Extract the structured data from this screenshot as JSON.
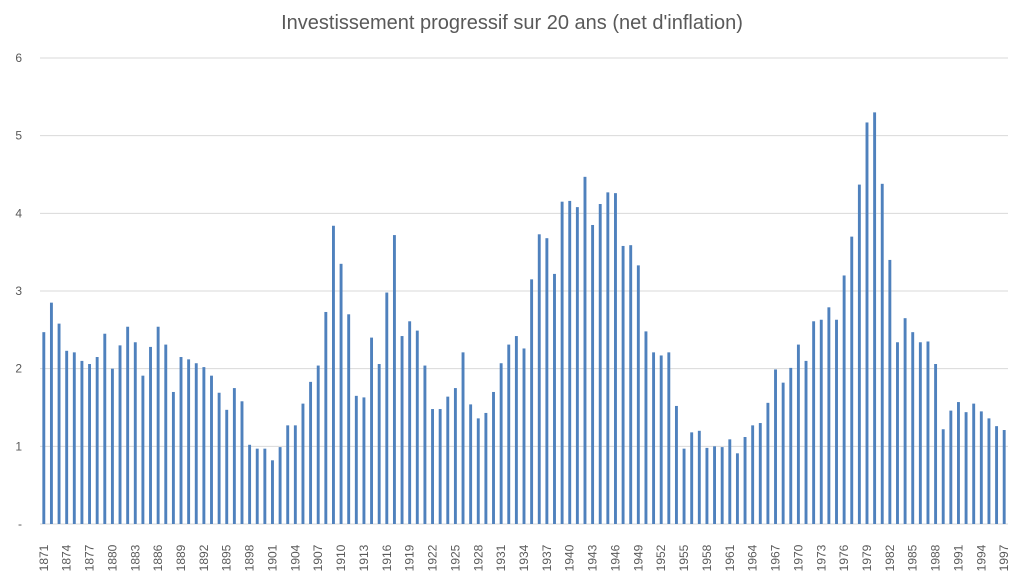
{
  "chart_data": {
    "type": "bar",
    "title": "Investissement progressif sur 20 ans (net d'inflation)",
    "xlabel": "",
    "ylabel": "",
    "ylim": [
      0,
      6
    ],
    "yticks": [
      {
        "value": 0,
        "label": "-"
      },
      {
        "value": 1,
        "label": "1"
      },
      {
        "value": 2,
        "label": "2"
      },
      {
        "value": 3,
        "label": "3"
      },
      {
        "value": 4,
        "label": "4"
      },
      {
        "value": 5,
        "label": "5"
      },
      {
        "value": 6,
        "label": "6"
      }
    ],
    "grid": true,
    "bar_color": "#4f81bd",
    "grid_color": "#d9d9d9",
    "start_year": 1871,
    "tick_every": 3,
    "values": [
      2.47,
      2.85,
      2.58,
      2.23,
      2.21,
      2.1,
      2.06,
      2.15,
      2.45,
      2.0,
      2.3,
      2.54,
      2.34,
      1.91,
      2.28,
      2.54,
      2.31,
      1.7,
      2.15,
      2.12,
      2.07,
      2.02,
      1.91,
      1.69,
      1.47,
      1.75,
      1.58,
      1.02,
      0.97,
      0.97,
      0.82,
      0.99,
      1.27,
      1.27,
      1.55,
      1.83,
      2.04,
      2.73,
      3.84,
      3.35,
      2.7,
      1.65,
      1.63,
      2.4,
      2.06,
      2.98,
      3.72,
      2.42,
      2.61,
      2.49,
      2.04,
      1.48,
      1.48,
      1.64,
      1.75,
      2.21,
      1.54,
      1.36,
      1.43,
      1.7,
      2.07,
      2.31,
      2.42,
      2.26,
      3.15,
      3.73,
      3.68,
      3.22,
      4.15,
      4.16,
      4.08,
      4.47,
      3.85,
      4.12,
      4.27,
      4.26,
      3.58,
      3.59,
      3.33,
      2.48,
      2.21,
      2.17,
      2.21,
      1.52,
      0.97,
      1.18,
      1.2,
      0.98,
      1.0,
      0.99,
      1.09,
      0.91,
      1.12,
      1.27,
      1.3,
      1.56,
      1.99,
      1.82,
      2.01,
      2.31,
      2.1,
      2.61,
      2.63,
      2.79,
      2.63,
      3.2,
      3.7,
      4.37,
      5.17,
      5.3,
      4.38,
      3.4,
      2.34,
      2.65,
      2.47,
      2.34,
      2.35,
      2.06,
      1.22,
      1.46,
      1.57,
      1.44,
      1.55,
      1.45,
      1.36,
      1.26,
      1.21
    ]
  }
}
